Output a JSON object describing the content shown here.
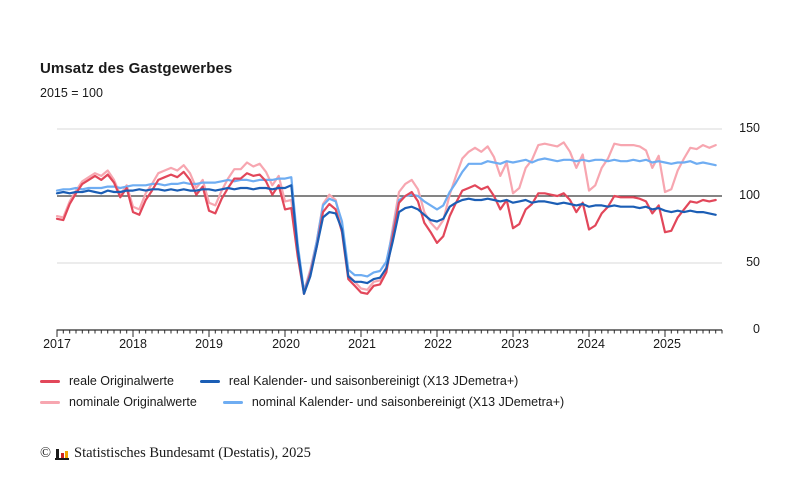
{
  "header": {
    "title": "Umsatz des Gastgewerbes",
    "subtitle": "2015 = 100"
  },
  "chart_data": {
    "type": "line",
    "title": "Umsatz des Gastgewerbes",
    "subtitle": "2015 = 100",
    "x_unit": "month",
    "x_start": "2017-01",
    "x_end": "2025-09",
    "x_tick_labels": [
      "2017",
      "2018",
      "2019",
      "2020",
      "2021",
      "2022",
      "2023",
      "2024",
      "2025"
    ],
    "y_tick_labels": [
      "150",
      "100",
      "50",
      "0"
    ],
    "y_ticks": [
      150,
      100,
      50,
      0
    ],
    "ylim": [
      0,
      155
    ],
    "reference_line_value": 100,
    "gridline_values": [
      50,
      150
    ],
    "grid": "horizontal",
    "legend_position": "bottom-left",
    "axis_color": "#2b2b2b",
    "gridline_color": "#d9d9d9",
    "reference_line_color": "#3a3a3a",
    "series": [
      {
        "name": "reale Originalwerte",
        "color": "#e2475a",
        "values": [
          83,
          82,
          94,
          102,
          109,
          112,
          115,
          112,
          116,
          110,
          99,
          106,
          88,
          86,
          97,
          104,
          112,
          114,
          116,
          114,
          118,
          112,
          101,
          107,
          89,
          87,
          98,
          106,
          113,
          113,
          117,
          115,
          116,
          111,
          101,
          108,
          90,
          91,
          55,
          27,
          42,
          62,
          88,
          94,
          90,
          73,
          38,
          33,
          28,
          27,
          33,
          34,
          43,
          70,
          95,
          100,
          103,
          96,
          80,
          73,
          65,
          70,
          85,
          95,
          104,
          106,
          108,
          105,
          107,
          100,
          90,
          97,
          76,
          79,
          90,
          94,
          102,
          102,
          101,
          100,
          102,
          97,
          88,
          95,
          75,
          78,
          87,
          92,
          100,
          99,
          99,
          99,
          98,
          96,
          87,
          93,
          73,
          74,
          84,
          90,
          96,
          95,
          97,
          96,
          97
        ]
      },
      {
        "name": "real Kalender- und saisonbereinigt (X13 JDemetra+)",
        "color": "#1b5eb5",
        "values": [
          102,
          103,
          102,
          103,
          103,
          104,
          103,
          102,
          104,
          103,
          103,
          104,
          104,
          105,
          104,
          105,
          105,
          104,
          105,
          104,
          105,
          104,
          104,
          105,
          105,
          104,
          105,
          106,
          105,
          106,
          106,
          105,
          106,
          106,
          105,
          106,
          106,
          108,
          60,
          27,
          40,
          62,
          84,
          88,
          87,
          75,
          40,
          36,
          36,
          35,
          38,
          39,
          46,
          66,
          88,
          91,
          92,
          90,
          86,
          82,
          81,
          83,
          92,
          95,
          97,
          98,
          97,
          97,
          98,
          97,
          96,
          97,
          95,
          96,
          97,
          95,
          96,
          96,
          95,
          94,
          95,
          94,
          93,
          94,
          92,
          93,
          93,
          92,
          93,
          92,
          92,
          92,
          91,
          92,
          90,
          91,
          89,
          88,
          89,
          88,
          89,
          88,
          88,
          87,
          86
        ]
      },
      {
        "name": "nominale Originalwerte",
        "color": "#f7a6b0",
        "values": [
          85,
          84,
          96,
          104,
          111,
          114,
          117,
          115,
          119,
          112,
          101,
          108,
          92,
          90,
          102,
          109,
          117,
          119,
          121,
          119,
          123,
          117,
          106,
          112,
          95,
          93,
          104,
          113,
          120,
          120,
          125,
          122,
          124,
          118,
          108,
          115,
          96,
          97,
          59,
          29,
          45,
          66,
          94,
          101,
          97,
          78,
          41,
          36,
          31,
          30,
          36,
          37,
          47,
          76,
          103,
          109,
          112,
          105,
          88,
          80,
          75,
          82,
          101,
          115,
          128,
          133,
          136,
          133,
          137,
          129,
          115,
          125,
          102,
          106,
          121,
          127,
          138,
          139,
          138,
          137,
          140,
          133,
          121,
          131,
          104,
          108,
          121,
          128,
          139,
          138,
          138,
          138,
          137,
          134,
          121,
          130,
          103,
          105,
          119,
          128,
          136,
          135,
          138,
          136,
          138
        ]
      },
      {
        "name": "nominal Kalender- und saisonbereinigt (X13 JDemetra+)",
        "color": "#6fadf2",
        "values": [
          104,
          105,
          105,
          106,
          105,
          106,
          106,
          106,
          107,
          107,
          106,
          107,
          108,
          108,
          108,
          109,
          109,
          108,
          109,
          109,
          110,
          109,
          109,
          110,
          110,
          110,
          111,
          112,
          111,
          112,
          112,
          111,
          112,
          112,
          112,
          113,
          113,
          114,
          64,
          29,
          43,
          66,
          93,
          98,
          96,
          81,
          45,
          41,
          41,
          40,
          43,
          44,
          51,
          73,
          97,
          100,
          101,
          100,
          96,
          93,
          90,
          93,
          103,
          110,
          118,
          124,
          124,
          124,
          126,
          125,
          124,
          126,
          125,
          126,
          127,
          125,
          127,
          128,
          127,
          126,
          127,
          127,
          126,
          127,
          126,
          127,
          127,
          126,
          127,
          126,
          126,
          127,
          126,
          127,
          125,
          126,
          125,
          124,
          125,
          125,
          126,
          124,
          125,
          124,
          123
        ]
      }
    ]
  },
  "footer": {
    "copyright": "©",
    "logo": "destatis-bar-chart-icon",
    "text": "Statistisches Bundesamt (Destatis), 2025"
  }
}
